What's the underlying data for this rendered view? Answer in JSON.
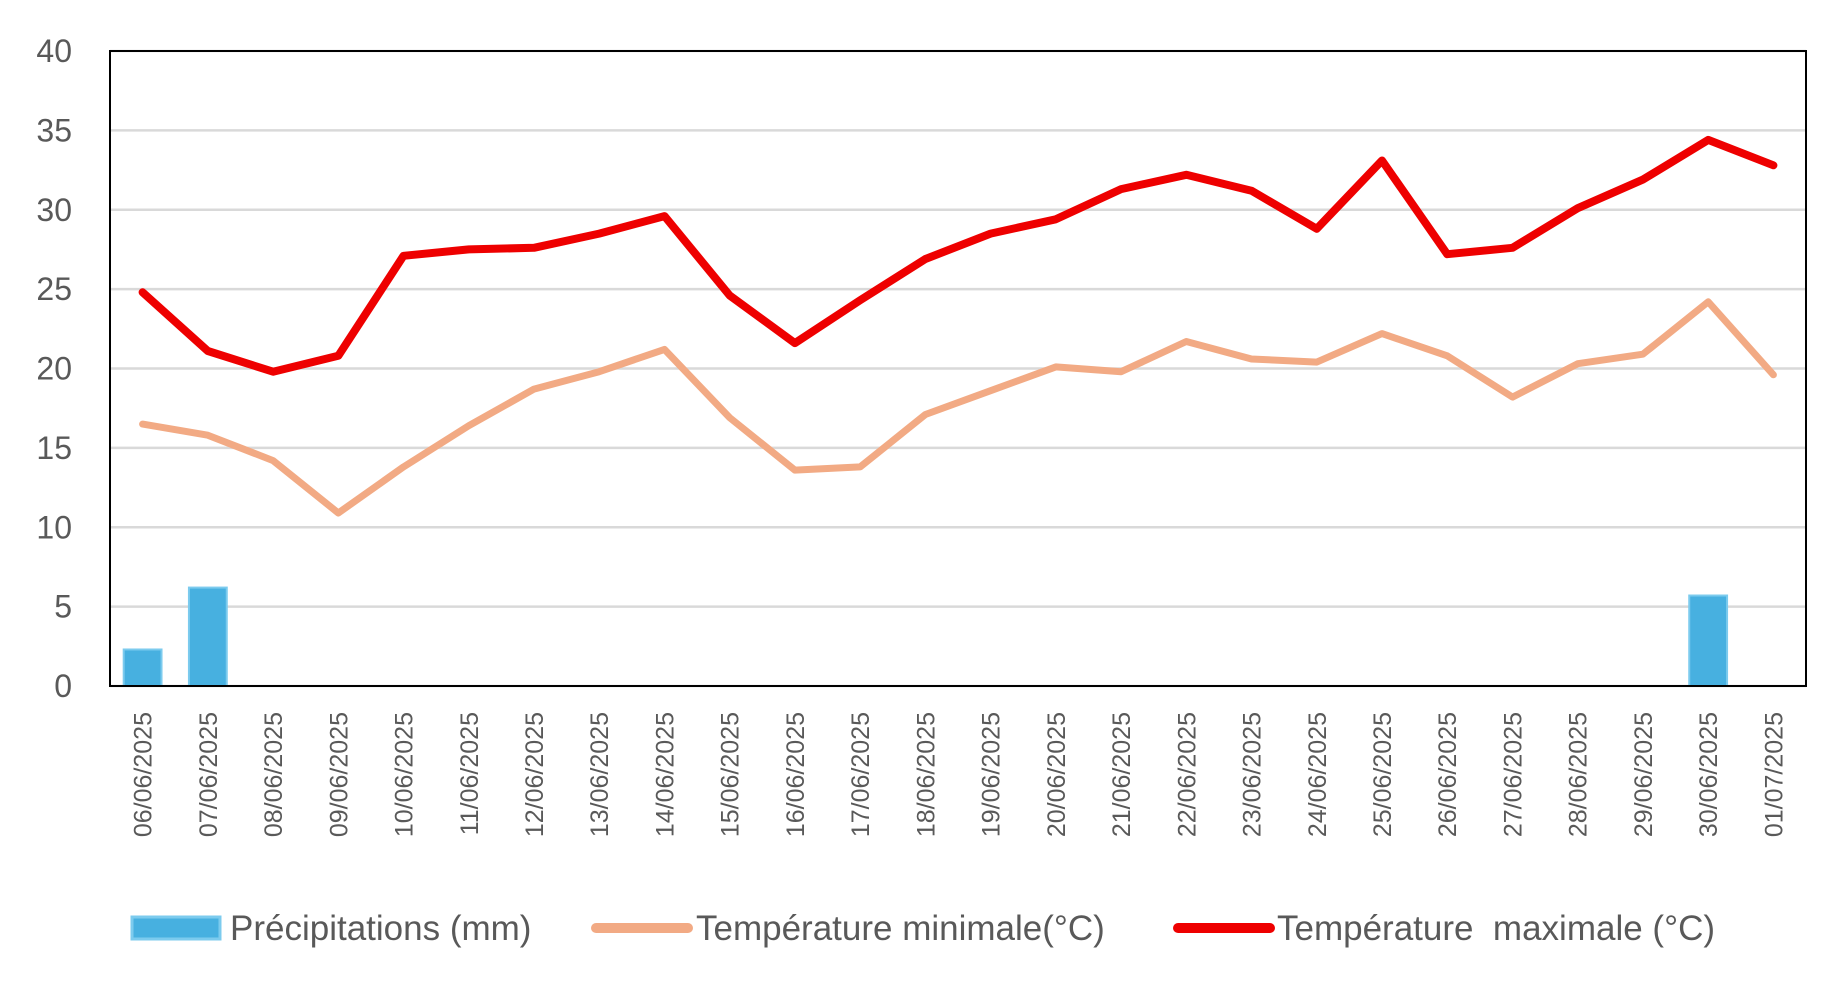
{
  "chart_data": {
    "type": "bar+line",
    "title": "",
    "xlabel": "",
    "ylabel": "",
    "ylim": [
      0,
      40
    ],
    "yticks": [
      0,
      5,
      10,
      15,
      20,
      25,
      30,
      35,
      40
    ],
    "grid": true,
    "legend_position": "bottom",
    "categories": [
      "06/06/2025",
      "07/06/2025",
      "08/06/2025",
      "09/06/2025",
      "10/06/2025",
      "11/06/2025",
      "12/06/2025",
      "13/06/2025",
      "14/06/2025",
      "15/06/2025",
      "16/06/2025",
      "17/06/2025",
      "18/06/2025",
      "19/06/2025",
      "20/06/2025",
      "21/06/2025",
      "22/06/2025",
      "23/06/2025",
      "24/06/2025",
      "25/06/2025",
      "26/06/2025",
      "27/06/2025",
      "28/06/2025",
      "29/06/2025",
      "30/06/2025",
      "01/07/2025"
    ],
    "series": [
      {
        "name": "Précipitations (mm)",
        "kind": "bar",
        "color": "#47B0E0",
        "values": [
          2.3,
          6.2,
          0,
          0,
          0,
          0,
          0,
          0,
          0,
          0,
          0,
          0,
          0,
          0,
          0,
          0,
          0,
          0,
          0,
          0,
          0,
          0,
          0,
          0,
          5.7,
          0
        ]
      },
      {
        "name": "Température minimale(°C)",
        "kind": "line",
        "color": "#F2AA84",
        "values": [
          16.5,
          15.8,
          14.2,
          10.9,
          13.8,
          16.4,
          18.7,
          19.8,
          21.2,
          16.9,
          13.6,
          13.8,
          17.1,
          18.6,
          20.1,
          19.8,
          21.7,
          20.6,
          20.4,
          22.2,
          20.8,
          18.2,
          20.3,
          20.9,
          24.2,
          19.6
        ]
      },
      {
        "name": "Température  maximale (°C)",
        "kind": "line",
        "color": "#EE0000",
        "values": [
          24.8,
          21.1,
          19.8,
          20.8,
          27.1,
          27.5,
          27.6,
          28.5,
          29.6,
          24.6,
          21.6,
          24.3,
          26.9,
          28.5,
          29.4,
          31.3,
          32.2,
          31.2,
          28.8,
          33.1,
          27.2,
          27.6,
          30.1,
          31.9,
          34.4,
          32.8
        ]
      }
    ]
  }
}
